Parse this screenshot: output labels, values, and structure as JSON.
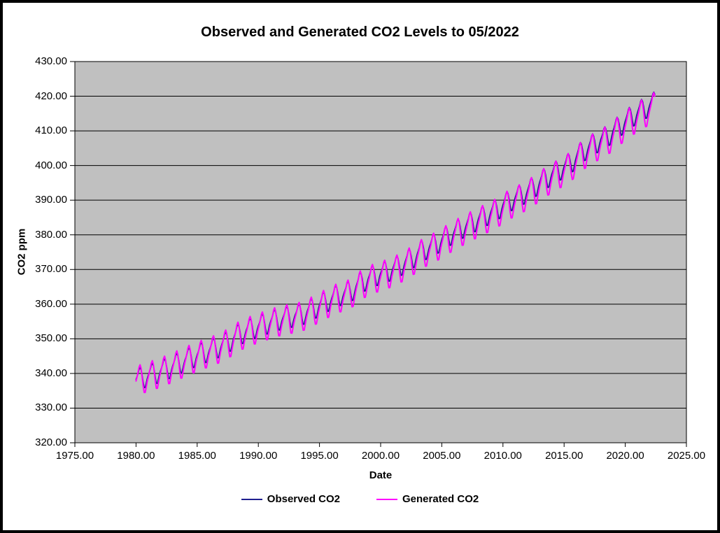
{
  "title": "Observed and Generated CO2 Levels to 05/2022",
  "plot": {
    "background": "#C0C0C0",
    "gridline_color": "#000000",
    "border_color": "#000000",
    "outer_background": "#FFFFFF",
    "frame_border_color": "#000000"
  },
  "axes": {
    "x": {
      "label": "Date",
      "ticks": [
        {
          "v": 1975,
          "t": "1975.00"
        },
        {
          "v": 1980,
          "t": "1980.00"
        },
        {
          "v": 1985,
          "t": "1985.00"
        },
        {
          "v": 1990,
          "t": "1990.00"
        },
        {
          "v": 1995,
          "t": "1995.00"
        },
        {
          "v": 2000,
          "t": "2000.00"
        },
        {
          "v": 2005,
          "t": "2005.00"
        },
        {
          "v": 2010,
          "t": "2010.00"
        },
        {
          "v": 2015,
          "t": "2015.00"
        },
        {
          "v": 2020,
          "t": "2020.00"
        },
        {
          "v": 2025,
          "t": "2025.00"
        }
      ]
    },
    "y": {
      "label": "CO2 ppm",
      "ticks": [
        {
          "v": 320,
          "t": "320.00"
        },
        {
          "v": 330,
          "t": "330.00"
        },
        {
          "v": 340,
          "t": "340.00"
        },
        {
          "v": 350,
          "t": "350.00"
        },
        {
          "v": 360,
          "t": "360.00"
        },
        {
          "v": 370,
          "t": "370.00"
        },
        {
          "v": 380,
          "t": "380.00"
        },
        {
          "v": 390,
          "t": "390.00"
        },
        {
          "v": 400,
          "t": "400.00"
        },
        {
          "v": 410,
          "t": "410.00"
        },
        {
          "v": 420,
          "t": "420.00"
        },
        {
          "v": 430,
          "t": "430.00"
        }
      ]
    }
  },
  "legend": [
    {
      "label": "Observed CO2",
      "color": "#1F1F8F"
    },
    {
      "label": "Generated CO2",
      "color": "#FF00FF"
    }
  ],
  "chart_data": {
    "type": "line",
    "title": "Observed and Generated CO2 Levels to 05/2022",
    "xlabel": "Date",
    "ylabel": "CO2 ppm",
    "xlim": [
      1975,
      2025
    ],
    "ylim": [
      320,
      430
    ],
    "x_tick_step": 5,
    "y_tick_step": 10,
    "grid": "horizontal-major",
    "legend_position": "bottom",
    "sampling": "monthly",
    "x_start": 1980.0,
    "x_end": 2022.42,
    "series": [
      {
        "name": "Observed CO2",
        "color": "#1F1F8F",
        "line_width": 1.7,
        "annual_years": [
          1980,
          1981,
          1982,
          1983,
          1984,
          1985,
          1986,
          1987,
          1988,
          1989,
          1990,
          1991,
          1992,
          1993,
          1994,
          1995,
          1996,
          1997,
          1998,
          1999,
          2000,
          2001,
          2002,
          2003,
          2004,
          2005,
          2006,
          2007,
          2008,
          2009,
          2010,
          2011,
          2012,
          2013,
          2014,
          2015,
          2016,
          2017,
          2018,
          2019,
          2020,
          2021,
          2022
        ],
        "annual_means": [
          338.91,
          340.11,
          341.45,
          343.05,
          344.65,
          346.12,
          347.42,
          349.19,
          351.57,
          353.12,
          354.39,
          355.61,
          356.45,
          357.1,
          358.83,
          360.82,
          362.61,
          363.73,
          366.7,
          368.38,
          369.55,
          371.14,
          373.28,
          375.8,
          377.52,
          379.8,
          381.9,
          383.79,
          385.6,
          387.43,
          389.9,
          391.65,
          393.85,
          396.52,
          398.65,
          400.83,
          404.24,
          406.55,
          408.52,
          411.44,
          414.24,
          416.45,
          418.56
        ],
        "seasonal_cycle_monthly": [
          0.0,
          0.7,
          1.5,
          2.6,
          3.0,
          2.2,
          0.6,
          -1.5,
          -3.2,
          -3.3,
          -2.1,
          -0.9
        ]
      },
      {
        "name": "Generated CO2",
        "color": "#FF00FF",
        "line_width": 2.0,
        "annual_years": [
          1980,
          1981,
          1982,
          1983,
          1984,
          1985,
          1986,
          1987,
          1988,
          1989,
          1990,
          1991,
          1992,
          1993,
          1994,
          1995,
          1996,
          1997,
          1998,
          1999,
          2000,
          2001,
          2002,
          2003,
          2004,
          2005,
          2006,
          2007,
          2008,
          2009,
          2010,
          2011,
          2012,
          2013,
          2014,
          2015,
          2016,
          2017,
          2018,
          2019,
          2020,
          2021,
          2022
        ],
        "annual_means": [
          338.61,
          339.79,
          341.1,
          342.68,
          344.25,
          345.7,
          346.98,
          348.72,
          351.08,
          352.61,
          353.85,
          355.05,
          355.86,
          356.49,
          358.2,
          360.16,
          361.93,
          363.03,
          365.97,
          367.63,
          368.77,
          370.34,
          372.46,
          374.95,
          376.65,
          378.9,
          380.98,
          382.85,
          384.63,
          386.44,
          388.89,
          390.61,
          392.79,
          395.43,
          397.54,
          399.7,
          403.08,
          405.37,
          407.32,
          410.21,
          412.99,
          415.17,
          417.26
        ],
        "seasonal_cycle_monthly": [
          -0.2,
          0.9,
          2.1,
          3.5,
          4.1,
          2.9,
          0.5,
          -2.3,
          -4.3,
          -4.4,
          -2.9,
          -1.4
        ]
      }
    ]
  }
}
